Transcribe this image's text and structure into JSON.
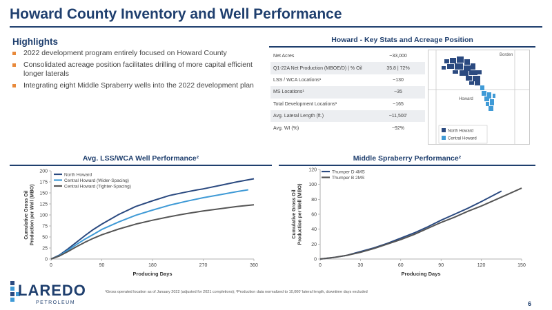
{
  "page": {
    "title": "Howard County Inventory and Well Performance",
    "footnote": "¹Gross operated location as of January 2022 (adjusted for 2021 completions); ²Production data normalized to 10,000’ lateral length, downtime days excluded",
    "page_number": "6"
  },
  "highlights": {
    "heading": "Highlights",
    "bullets": [
      "2022 development program entirely focused on Howard County",
      "Consolidated acreage position facilitates drilling of more capital efficient longer laterals",
      "Integrating eight Middle Spraberry wells into the 2022 development plan"
    ]
  },
  "key_stats": {
    "heading": "Howard - Key Stats and Acreage Position",
    "rows": [
      {
        "label": "Net Acres",
        "value": "~33,000"
      },
      {
        "label": "Q1-22A Net Production (MBOE/D) | % Oil",
        "value": "35.8 | 72%"
      },
      {
        "label": "LSS / WCA Locations¹",
        "value": "~130"
      },
      {
        "label": "MS Locations¹",
        "value": "~35"
      },
      {
        "label": "Total Development Locations¹",
        "value": "~165"
      },
      {
        "label": "Avg. Lateral Length (ft.)",
        "value": "~11,500’"
      },
      {
        "label": "Avg. WI (%)",
        "value": "~92%"
      }
    ]
  },
  "map": {
    "label_borden": "Borden",
    "label_howard": "Howard",
    "legend": [
      {
        "name": "North Howard",
        "color": "#2b4a80"
      },
      {
        "name": "Central Howard",
        "color": "#3f9ad6"
      }
    ]
  },
  "logo": {
    "wordmark": "LAREDO",
    "subword": "PETROLEUM"
  },
  "chart_data": [
    {
      "type": "line",
      "title": "Avg. LSS/WCA Well Performance²",
      "xlabel": "Producing Days",
      "ylabel": "Cumulative Gross Oil Production per Well (MBO)",
      "xlim": [
        0,
        360
      ],
      "ylim": [
        0,
        200
      ],
      "xticks": [
        "0",
        "90",
        "180",
        "270",
        "360"
      ],
      "yticks": [
        "0",
        "25",
        "50",
        "75",
        "100",
        "125",
        "150",
        "175",
        "200"
      ],
      "grid": false,
      "legend_position": "top-left",
      "series": [
        {
          "name": "North Howard",
          "color": "#2b4a80",
          "x": [
            0,
            15,
            30,
            45,
            60,
            75,
            90,
            120,
            150,
            180,
            210,
            240,
            260,
            270,
            300,
            330,
            360
          ],
          "y": [
            0,
            9,
            23,
            38,
            53,
            67,
            79,
            101,
            119,
            132,
            144,
            152,
            157,
            159,
            167,
            175,
            182
          ]
        },
        {
          "name": "Central Howard (Wider-Spacing)",
          "color": "#3f9ad6",
          "x": [
            0,
            15,
            30,
            45,
            60,
            75,
            90,
            120,
            150,
            180,
            210,
            240,
            270,
            300,
            330,
            350
          ],
          "y": [
            0,
            8,
            20,
            33,
            45,
            56,
            67,
            84,
            99,
            111,
            122,
            131,
            139,
            146,
            153,
            157
          ]
        },
        {
          "name": "Central Howard (Tighter-Spacing)",
          "color": "#555555",
          "x": [
            0,
            15,
            30,
            45,
            60,
            75,
            90,
            120,
            150,
            180,
            210,
            240,
            270,
            300,
            330,
            360
          ],
          "y": [
            0,
            7,
            17,
            28,
            38,
            47,
            55,
            68,
            79,
            88,
            96,
            103,
            109,
            114,
            119,
            123
          ]
        }
      ]
    },
    {
      "type": "line",
      "title": "Middle Spraberry Performance²",
      "xlabel": "Producing Days",
      "ylabel": "Cumulative Gross Oil Production per Well (MBO)",
      "xlim": [
        0,
        150
      ],
      "ylim": [
        0,
        120
      ],
      "xticks": [
        "0",
        "30",
        "60",
        "90",
        "120",
        "150"
      ],
      "yticks": [
        "0",
        "20",
        "40",
        "60",
        "80",
        "100",
        "120"
      ],
      "grid": false,
      "legend_position": "top-left",
      "series": [
        {
          "name": "Thumper D 4MS",
          "color": "#2b4a80",
          "x": [
            0,
            10,
            20,
            30,
            40,
            50,
            60,
            70,
            80,
            90,
            100,
            110,
            120,
            135
          ],
          "y": [
            0,
            2,
            5,
            10,
            15,
            21,
            28,
            35,
            43,
            52,
            60,
            68,
            77,
            91
          ]
        },
        {
          "name": "Thumper B 2MS",
          "color": "#555555",
          "x": [
            0,
            10,
            20,
            30,
            40,
            50,
            60,
            70,
            80,
            90,
            100,
            110,
            120,
            130,
            140,
            150
          ],
          "y": [
            0,
            2,
            5,
            9,
            14,
            20,
            26,
            33,
            41,
            49,
            56,
            64,
            71,
            79,
            87,
            95
          ]
        }
      ]
    }
  ]
}
